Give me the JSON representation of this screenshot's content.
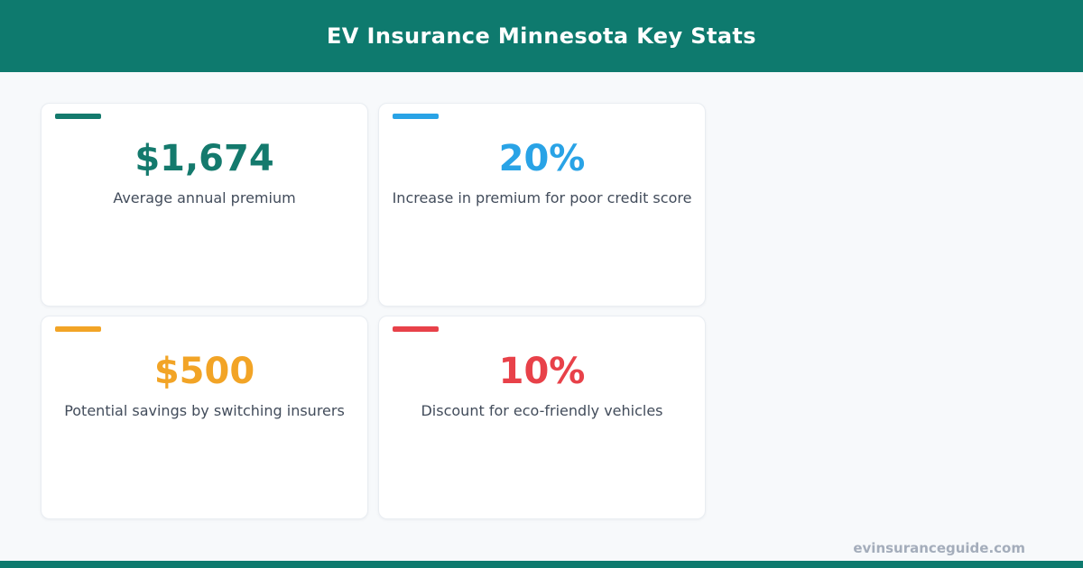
{
  "header": {
    "title": "EV Insurance Minnesota Key Stats",
    "background_color": "#0e7a6e",
    "text_color": "#ffffff"
  },
  "cards": [
    {
      "value": "$1,674",
      "label": "Average annual premium",
      "color": "#147a6d"
    },
    {
      "value": "20%",
      "label": "Increase in premium for poor credit score",
      "color": "#29a3e6"
    },
    {
      "value": "$500",
      "label": "Potential savings by switching insurers",
      "color": "#f2a426"
    },
    {
      "value": "10%",
      "label": "Discount for eco-friendly vehicles",
      "color": "#e84149"
    }
  ],
  "footer": {
    "website": "evinsuranceguide.com",
    "bar_color": "#0e7a6e",
    "text_color": "#a4adbb"
  },
  "colors": {
    "page_background": "#f7f9fb",
    "card_background": "#ffffff",
    "card_border": "#e9edf2",
    "label_text": "#424c5b"
  },
  "chart_data": {
    "type": "table",
    "title": "EV Insurance Minnesota Key Stats",
    "categories": [
      "Average annual premium",
      "Increase in premium for poor credit score",
      "Potential savings by switching insurers",
      "Discount for eco-friendly vehicles"
    ],
    "values": [
      1674,
      20,
      500,
      10
    ],
    "display_values": [
      "$1,674",
      "20%",
      "$500",
      "10%"
    ],
    "units": [
      "USD",
      "percent",
      "USD",
      "percent"
    ],
    "legend_position": "none",
    "grid": false
  }
}
